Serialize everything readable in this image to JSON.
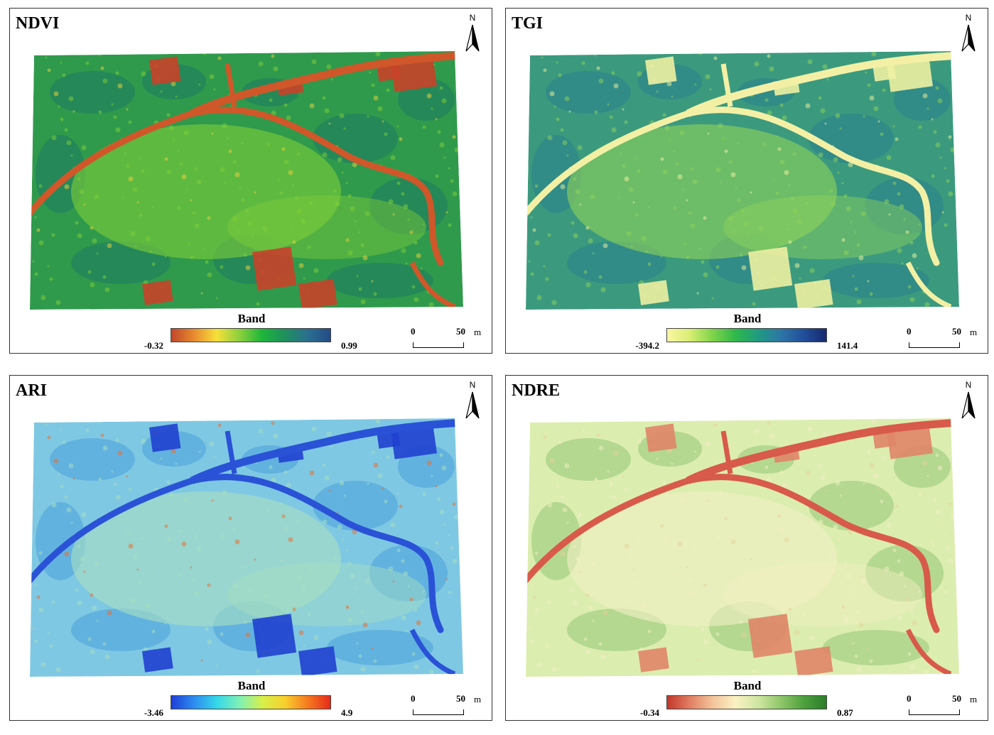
{
  "legend_heading": "Band",
  "scale": {
    "zero": "0",
    "fifty": "50",
    "unit": "m"
  },
  "north_label": "N",
  "panels": [
    {
      "title": "NDVI",
      "min_label": "-0.32",
      "max_label": "0.99",
      "ramp": [
        "#c1462a",
        "#e88a2e",
        "#f7e03a",
        "#8cd03c",
        "#1db53a",
        "#1f8f5e",
        "#2b6f8f",
        "#244b87"
      ],
      "palette": {
        "base": "#2f9a4c",
        "patch": "#1d7a63",
        "light": "#7fcf38",
        "bright": "#f0d23a",
        "road": "#d0572a",
        "bare": "#c9432a"
      }
    },
    {
      "title": "TGI",
      "min_label": "-394.2",
      "max_label": "141.4",
      "ramp": [
        "#fbf6a4",
        "#d8ee72",
        "#7fd34a",
        "#2fb84a",
        "#1f9b80",
        "#2d76a5",
        "#214e9c",
        "#172a6e"
      ],
      "palette": {
        "base": "#3b9a7e",
        "patch": "#2a7f8c",
        "light": "#8fd45a",
        "bright": "#f2f3a0",
        "road": "#f3f0a5",
        "bare": "#eef0a2"
      }
    },
    {
      "title": "ARI",
      "min_label": "-3.46",
      "max_label": "4.9",
      "ramp": [
        "#1d3fd8",
        "#2d8cf0",
        "#35d7ea",
        "#7ff0b6",
        "#d6f04a",
        "#f8cf2d",
        "#f67b20",
        "#e62a1a"
      ],
      "palette": {
        "base": "#7fc8e3",
        "patch": "#4aa0dc",
        "light": "#a8e0c2",
        "bright": "#ef6a28",
        "road": "#2a52d6",
        "bare": "#2040cf"
      }
    },
    {
      "title": "NDRE",
      "min_label": "-0.34",
      "max_label": "0.87",
      "ramp": [
        "#c2372b",
        "#e07f63",
        "#f3c49a",
        "#fbf1c3",
        "#cfe6a1",
        "#8fc66a",
        "#4ea03e",
        "#2b7d2b"
      ],
      "palette": {
        "base": "#dcedb0",
        "patch": "#93c774",
        "light": "#f2f0c4",
        "bright": "#e7d29a",
        "road": "#d85a4a",
        "bare": "#e08568"
      }
    }
  ]
}
